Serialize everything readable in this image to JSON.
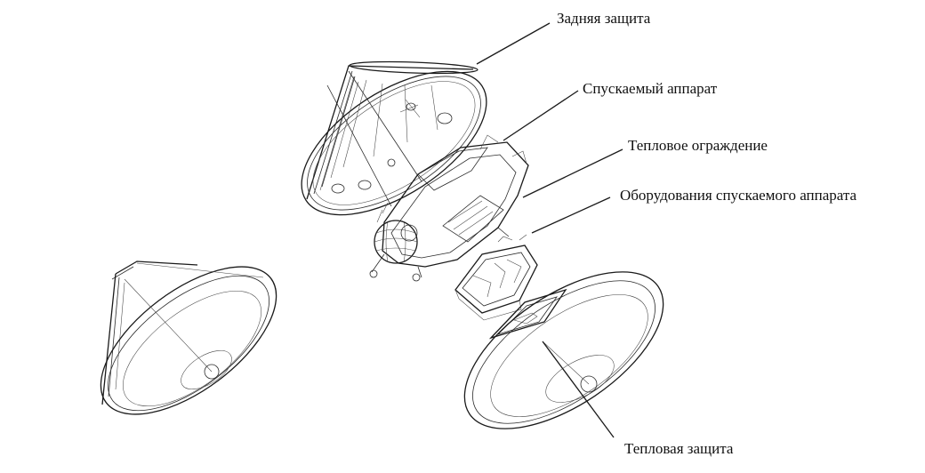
{
  "labels": {
    "backshell": "Задняя защита",
    "descent_stage": "Спускаемый аппарат",
    "cruise_ring": "Тепловое ограждение",
    "descent_equipment": "Оборудования спускаемого аппарата",
    "heat_shield": "Тепловая защита"
  },
  "colors": {
    "ink": "#1a1a1a",
    "background": "#ffffff"
  }
}
